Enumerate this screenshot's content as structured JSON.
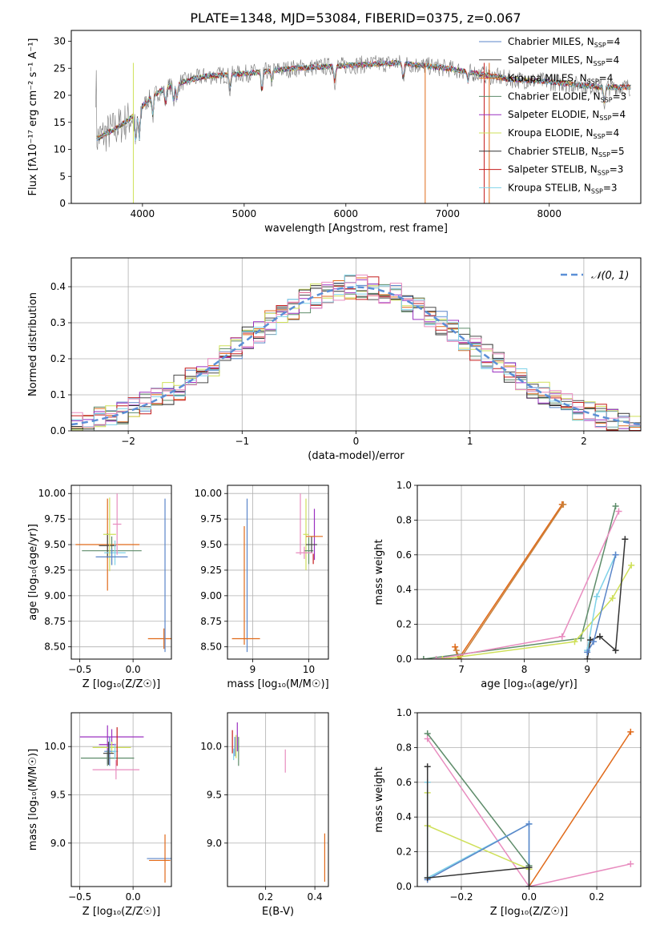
{
  "figure_title": "PLATE=1348, MJD=53084, FIBERID=0375, z=0.067",
  "series_colors": [
    "#5b86c9",
    "#4a4a4a",
    "#e06a1a",
    "#5e8c6a",
    "#9b30c0",
    "#cfe05a",
    "#333333",
    "#c61e1e",
    "#7fd2e8",
    "#e88cbf"
  ],
  "chart_data": [
    {
      "id": "spectrum",
      "type": "line",
      "title": "PLATE=1348, MJD=53084, FIBERID=0375, z=0.067",
      "xlabel": "wavelength [Angstrom, rest frame]",
      "ylabel": "Flux [fλ10⁻¹⁷ erg cm⁻² s⁻¹ A⁻¹]",
      "xlim": [
        3300,
        8900
      ],
      "ylim": [
        0,
        32
      ],
      "xticks": [
        4000,
        5000,
        6000,
        7000,
        8000
      ],
      "yticks": [
        0,
        5,
        10,
        15,
        20,
        25,
        30
      ],
      "legend_position": "top-right",
      "legend": [
        {
          "label": "Chabrier MILES, N",
          "sub": "SSP",
          "suffix": "=4",
          "color": "#5b86c9"
        },
        {
          "label": "Salpeter MILES, N",
          "sub": "SSP",
          "suffix": "=4",
          "color": "#4a4a4a"
        },
        {
          "label": "Kroupa MILES, N",
          "sub": "SSP",
          "suffix": "=4",
          "color": "#e06a1a"
        },
        {
          "label": "Chabrier ELODIE, N",
          "sub": "SSP",
          "suffix": "=3",
          "color": "#5e8c6a"
        },
        {
          "label": "Salpeter ELODIE, N",
          "sub": "SSP",
          "suffix": "=4",
          "color": "#9b30c0"
        },
        {
          "label": "Kroupa ELODIE, N",
          "sub": "SSP",
          "suffix": "=4",
          "color": "#cfe05a"
        },
        {
          "label": "Chabrier STELIB, N",
          "sub": "SSP",
          "suffix": "=5",
          "color": "#333333"
        },
        {
          "label": "Salpeter STELIB, N",
          "sub": "SSP",
          "suffix": "=3",
          "color": "#c61e1e"
        },
        {
          "label": "Kroupa STELIB, N",
          "sub": "SSP",
          "suffix": "=3",
          "color": "#7fd2e8"
        }
      ],
      "continuum": [
        [
          3550,
          12
        ],
        [
          3650,
          13
        ],
        [
          3750,
          14
        ],
        [
          3900,
          16
        ],
        [
          4000,
          18
        ],
        [
          4100,
          20
        ],
        [
          4300,
          22
        ],
        [
          4600,
          23.5
        ],
        [
          5000,
          24
        ],
        [
          5500,
          25
        ],
        [
          6000,
          25.5
        ],
        [
          6500,
          26
        ],
        [
          7000,
          25
        ],
        [
          7300,
          24
        ],
        [
          7600,
          23
        ],
        [
          8000,
          22.5
        ],
        [
          8500,
          21.5
        ],
        [
          8800,
          21.5
        ]
      ],
      "absorption_lines": [
        [
          3934,
          6
        ],
        [
          3969,
          6
        ],
        [
          4102,
          4
        ],
        [
          4227,
          3
        ],
        [
          4305,
          3.5
        ],
        [
          4340,
          3
        ],
        [
          4861,
          3
        ],
        [
          5175,
          4
        ],
        [
          5270,
          2
        ],
        [
          5890,
          3
        ],
        [
          6563,
          3
        ],
        [
          7200,
          2
        ],
        [
          8542,
          3
        ]
      ],
      "vertical_spikes": [
        3910,
        6780,
        7360,
        7410
      ]
    },
    {
      "id": "residuals",
      "type": "area",
      "xlabel": "(data-model)/error",
      "ylabel": "Normed distribution",
      "xlim": [
        -2.5,
        2.5
      ],
      "ylim": [
        0,
        0.48
      ],
      "xticks": [
        -2,
        -1,
        0,
        1,
        2
      ],
      "yticks": [
        0.0,
        0.1,
        0.2,
        0.3,
        0.4
      ],
      "grid": true,
      "legend_position": "top-right",
      "legend": [
        {
          "label": "𝒩(0, 1)",
          "color": "#5b8fd6"
        }
      ],
      "bin_width": 0.1
    },
    {
      "id": "age-vs-Z",
      "type": "scatter",
      "xlabel": "Z [log₁₀(Z/Z☉)]",
      "ylabel": "age  [log₁₀(age/yr)]",
      "xlim": [
        -0.58,
        0.36
      ],
      "ylim": [
        8.38,
        10.08
      ],
      "xticks": [
        -0.5,
        0.0
      ],
      "yticks": [
        8.5,
        8.75,
        9.0,
        9.25,
        9.5,
        9.75,
        10.0
      ],
      "grid": true,
      "errorbars": [
        {
          "x": -0.24,
          "y": 9.5,
          "xerr": 0.3,
          "yerr": 0.45,
          "color": "#e06a1a"
        },
        {
          "x": -0.2,
          "y": 9.44,
          "xerr": 0.28,
          "yerr": 0.14,
          "color": "#5e8c6a"
        },
        {
          "x": -0.24,
          "y": 9.49,
          "xerr": 0.08,
          "yerr": 0.12,
          "color": "#4a4a4a"
        },
        {
          "x": -0.17,
          "y": 9.42,
          "xerr": 0.1,
          "yerr": 0.12,
          "color": "#7fd2e8"
        },
        {
          "x": -0.22,
          "y": 9.6,
          "xerr": 0.06,
          "yerr": 0.36,
          "color": "#cfe05a"
        },
        {
          "x": -0.15,
          "y": 9.7,
          "xerr": 0.04,
          "yerr": 0.3,
          "color": "#e88cbf"
        },
        {
          "x": -0.2,
          "y": 9.38,
          "xerr": 0.15,
          "yerr": 0.08,
          "color": "#5b86c9"
        },
        {
          "x": 0.29,
          "y": 8.58,
          "xerr": 0.15,
          "yerr": 0.1,
          "color": "#e06a1a"
        },
        {
          "x": 0.3,
          "y": 9.2,
          "xerr": 0.0,
          "yerr": 0.75,
          "color": "#5b86c9"
        }
      ]
    },
    {
      "id": "age-vs-mass",
      "type": "scatter",
      "xlabel": "mass [log₁₀(M/M☉)]",
      "ylabel": "",
      "xlim": [
        8.55,
        10.35
      ],
      "ylim": [
        8.38,
        10.08
      ],
      "xticks": [
        9,
        10
      ],
      "yticks": [
        8.5,
        8.75,
        9.0,
        9.25,
        9.5,
        9.75,
        10.0
      ],
      "grid": true,
      "errorbars": [
        {
          "x": 8.9,
          "y": 9.2,
          "xerr": 0.0,
          "yerr": 0.75,
          "color": "#5b86c9"
        },
        {
          "x": 8.85,
          "y": 9.1,
          "xerr": 0.0,
          "yerr": 0.58,
          "color": "#e06a1a"
        },
        {
          "x": 8.88,
          "y": 8.58,
          "xerr": 0.25,
          "yerr": 0.0,
          "color": "#e06a1a"
        },
        {
          "x": 9.85,
          "y": 9.7,
          "xerr": 0.0,
          "yerr": 0.3,
          "color": "#e88cbf"
        },
        {
          "x": 9.95,
          "y": 9.6,
          "xerr": 0.05,
          "yerr": 0.35,
          "color": "#cfe05a"
        },
        {
          "x": 10.1,
          "y": 9.6,
          "xerr": 0.0,
          "yerr": 0.25,
          "color": "#9b30c0"
        },
        {
          "x": 10.0,
          "y": 9.44,
          "xerr": 0.08,
          "yerr": 0.13,
          "color": "#5e8c6a"
        },
        {
          "x": 10.05,
          "y": 9.5,
          "xerr": 0.1,
          "yerr": 0.08,
          "color": "#4a4a4a"
        },
        {
          "x": 10.1,
          "y": 9.58,
          "xerr": 0.15,
          "yerr": 0.0,
          "color": "#e06a1a"
        },
        {
          "x": 9.92,
          "y": 9.42,
          "xerr": 0.15,
          "yerr": 0.06,
          "color": "#e88cbf"
        },
        {
          "x": 10.08,
          "y": 9.36,
          "xerr": 0.0,
          "yerr": 0.05,
          "color": "#c61e1e"
        }
      ]
    },
    {
      "id": "weight-vs-age",
      "type": "line",
      "xlabel": "age  [log₁₀(age/yr)]",
      "ylabel": "mass weight",
      "xlim": [
        6.3,
        9.85
      ],
      "ylim": [
        0,
        1.0
      ],
      "xticks": [
        7,
        8,
        9
      ],
      "yticks": [
        0.0,
        0.2,
        0.4,
        0.6,
        0.8,
        1.0
      ],
      "grid": true,
      "series": [
        {
          "color": "#e06a1a",
          "x": [
            6.9,
            6.95,
            8.6
          ],
          "y": [
            0.07,
            0.0,
            0.89
          ]
        },
        {
          "color": "#c9823c",
          "x": [
            6.92,
            6.98,
            8.62
          ],
          "y": [
            0.05,
            0.0,
            0.89
          ]
        },
        {
          "color": "#5e8c6a",
          "x": [
            6.4,
            8.9,
            9.45
          ],
          "y": [
            0.0,
            0.12,
            0.88
          ]
        },
        {
          "color": "#e88cbf",
          "x": [
            6.6,
            8.6,
            9.5
          ],
          "y": [
            0.0,
            0.13,
            0.85
          ]
        },
        {
          "color": "#cfe05a",
          "x": [
            6.7,
            8.8,
            9.4,
            9.7
          ],
          "y": [
            0.0,
            0.1,
            0.35,
            0.54
          ]
        },
        {
          "color": "#7fd2e8",
          "x": [
            9.0,
            9.15,
            9.45
          ],
          "y": [
            0.05,
            0.36,
            0.6
          ]
        },
        {
          "color": "#333333",
          "x": [
            9.0,
            9.05,
            9.2,
            9.45,
            9.6
          ],
          "y": [
            0.0,
            0.11,
            0.13,
            0.05,
            0.69
          ]
        },
        {
          "color": "#5b86c9",
          "x": [
            9.0,
            9.1,
            9.45
          ],
          "y": [
            0.04,
            0.1,
            0.6
          ]
        }
      ]
    },
    {
      "id": "mass-vs-Z",
      "type": "scatter",
      "xlabel": "Z [log₁₀(Z/Z☉)]",
      "ylabel": "mass [log₁₀(M/M☉)]",
      "xlim": [
        -0.58,
        0.36
      ],
      "ylim": [
        8.55,
        10.35
      ],
      "xticks": [
        -0.5,
        0.0
      ],
      "yticks": [
        9.0,
        9.5,
        10.0
      ],
      "grid": true,
      "errorbars": [
        {
          "x": -0.2,
          "y": 10.1,
          "xerr": 0.3,
          "yerr": 0.08,
          "color": "#9b30c0"
        },
        {
          "x": -0.24,
          "y": 10.02,
          "xerr": 0.08,
          "yerr": 0.2,
          "color": "#9b30c0"
        },
        {
          "x": -0.2,
          "y": 9.99,
          "xerr": 0.18,
          "yerr": 0.06,
          "color": "#cfe05a"
        },
        {
          "x": -0.22,
          "y": 9.95,
          "xerr": 0.05,
          "yerr": 0.15,
          "color": "#5b86c9"
        },
        {
          "x": -0.24,
          "y": 9.88,
          "xerr": 0.25,
          "yerr": 0.08,
          "color": "#5e8c6a"
        },
        {
          "x": -0.23,
          "y": 9.93,
          "xerr": 0.05,
          "yerr": 0.12,
          "color": "#4a4a4a"
        },
        {
          "x": -0.17,
          "y": 9.95,
          "xerr": 0.03,
          "yerr": 0.08,
          "color": "#7fd2e8"
        },
        {
          "x": -0.15,
          "y": 10.0,
          "xerr": 0.0,
          "yerr": 0.2,
          "color": "#c61e1e"
        },
        {
          "x": -0.16,
          "y": 9.76,
          "xerr": 0.22,
          "yerr": 0.1,
          "color": "#e88cbf"
        },
        {
          "x": 0.25,
          "y": 8.84,
          "xerr": 0.12,
          "yerr": 0.0,
          "color": "#5b86c9"
        },
        {
          "x": 0.25,
          "y": 8.82,
          "xerr": 0.1,
          "yerr": 0.0,
          "color": "#e06a1a"
        },
        {
          "x": 0.3,
          "y": 8.84,
          "xerr": 0.0,
          "yerr": 0.25,
          "color": "#e06a1a"
        }
      ]
    },
    {
      "id": "mass-vs-ebv",
      "type": "scatter",
      "xlabel": "E(B-V)",
      "ylabel": "",
      "xlim": [
        0.045,
        0.455
      ],
      "ylim": [
        8.55,
        10.35
      ],
      "xticks": [
        0.2,
        0.4
      ],
      "yticks": [
        9.0,
        9.5,
        10.0
      ],
      "grid": true,
      "errorbars": [
        {
          "x": 0.065,
          "y": 10.05,
          "xerr": 0.0,
          "yerr": 0.12,
          "color": "#c61e1e"
        },
        {
          "x": 0.075,
          "y": 10.0,
          "xerr": 0.0,
          "yerr": 0.1,
          "color": "#5b86c9"
        },
        {
          "x": 0.085,
          "y": 10.1,
          "xerr": 0.0,
          "yerr": 0.15,
          "color": "#9b30c0"
        },
        {
          "x": 0.09,
          "y": 9.95,
          "xerr": 0.0,
          "yerr": 0.15,
          "color": "#5e8c6a"
        },
        {
          "x": 0.08,
          "y": 10.0,
          "xerr": 0.0,
          "yerr": 0.12,
          "color": "#cfe05a"
        },
        {
          "x": 0.07,
          "y": 9.92,
          "xerr": 0.0,
          "yerr": 0.06,
          "color": "#7fd2e8"
        },
        {
          "x": 0.28,
          "y": 9.85,
          "xerr": 0.0,
          "yerr": 0.12,
          "color": "#e88cbf"
        },
        {
          "x": 0.44,
          "y": 8.85,
          "xerr": 0.0,
          "yerr": 0.25,
          "color": "#e06a1a"
        }
      ]
    },
    {
      "id": "weight-vs-Z",
      "type": "line",
      "xlabel": "Z [log₁₀(Z/Z☉)]",
      "ylabel": "mass weight",
      "xlim": [
        -0.33,
        0.33
      ],
      "ylim": [
        0,
        1.0
      ],
      "xticks": [
        -0.2,
        0.0,
        0.2
      ],
      "yticks": [
        0.0,
        0.2,
        0.4,
        0.6,
        0.8,
        1.0
      ],
      "grid": true,
      "series": [
        {
          "color": "#e06a1a",
          "x": [
            0.0,
            0.3
          ],
          "y": [
            0.0,
            0.89
          ]
        },
        {
          "color": "#5e8c6a",
          "x": [
            -0.3,
            0.0,
            0.0
          ],
          "y": [
            0.88,
            0.12,
            0.0
          ]
        },
        {
          "color": "#e88cbf",
          "x": [
            -0.3,
            0.0,
            0.3
          ],
          "y": [
            0.85,
            0.0,
            0.13
          ]
        },
        {
          "color": "#cfe05a",
          "x": [
            -0.3,
            -0.3,
            0.0,
            0.0
          ],
          "y": [
            0.54,
            0.35,
            0.1,
            0.0
          ]
        },
        {
          "color": "#7fd2e8",
          "x": [
            -0.3,
            -0.3,
            0.0,
            0.0
          ],
          "y": [
            0.6,
            0.05,
            0.36,
            0.0
          ]
        },
        {
          "color": "#5b86c9",
          "x": [
            -0.3,
            0.0,
            0.0
          ],
          "y": [
            0.04,
            0.36,
            0.0
          ]
        },
        {
          "color": "#333333",
          "x": [
            -0.3,
            -0.3,
            0.0,
            0.0
          ],
          "y": [
            0.69,
            0.05,
            0.11,
            0.0
          ]
        }
      ]
    }
  ]
}
